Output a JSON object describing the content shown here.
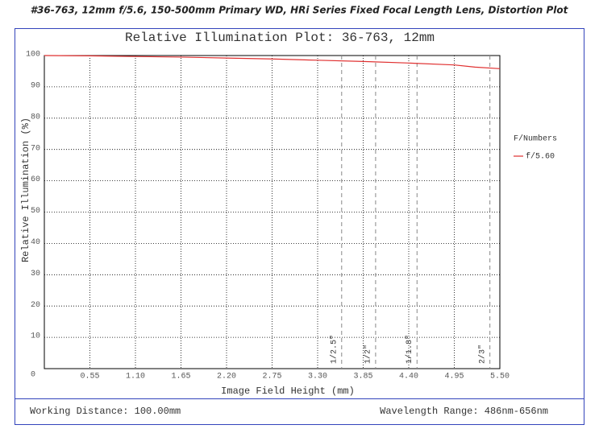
{
  "header": {
    "title": "#36-763, 12mm f/5.6, 150-500mm Primary WD, HRi Series Fixed Focal Length Lens, Distortion Plot"
  },
  "chart_data": {
    "type": "line",
    "title": "Relative Illumination Plot: 36-763, 12mm",
    "x_label": "Image Field Height (mm)",
    "y_label": "Relative Illumination (%)",
    "x": [
      0,
      0.55,
      1.1,
      1.65,
      2.2,
      2.75,
      3.3,
      3.85,
      4.4,
      4.95,
      5.2,
      5.5
    ],
    "series": [
      {
        "name": "f/5.60",
        "color": "#e03030",
        "values": [
          100,
          99.9,
          99.7,
          99.5,
          99.2,
          98.9,
          98.5,
          98.1,
          97.6,
          97.0,
          96.3,
          95.8
        ]
      }
    ],
    "legend_title": "F/Numbers",
    "legend_position": "right",
    "xlim": [
      0,
      5.5
    ],
    "ylim": [
      0,
      100
    ],
    "xticks": [
      0.55,
      {
        "value": 1.1,
        "label": "1.10"
      },
      1.65,
      {
        "value": 2.2,
        "label": "2.20"
      },
      2.75,
      {
        "value": 3.3,
        "label": "3.30"
      },
      3.85,
      {
        "value": 4.4,
        "label": "4.40"
      },
      4.95,
      {
        "value": 5.5,
        "label": "5.50"
      }
    ],
    "yticks": [
      0,
      10,
      20,
      30,
      40,
      50,
      60,
      70,
      80,
      90,
      100
    ],
    "grid": true,
    "sensor_markers": [
      {
        "label": "1/2.5\"",
        "value": 3.59
      },
      {
        "label": "1/2\"",
        "value": 4.0
      },
      {
        "label": "1/1.8\"",
        "value": 4.5
      },
      {
        "label": "2/3\"",
        "value": 5.38
      }
    ]
  },
  "footer": {
    "left": "Working Distance: 100.00mm",
    "right": "Wavelength Range: 486nm-656nm"
  }
}
